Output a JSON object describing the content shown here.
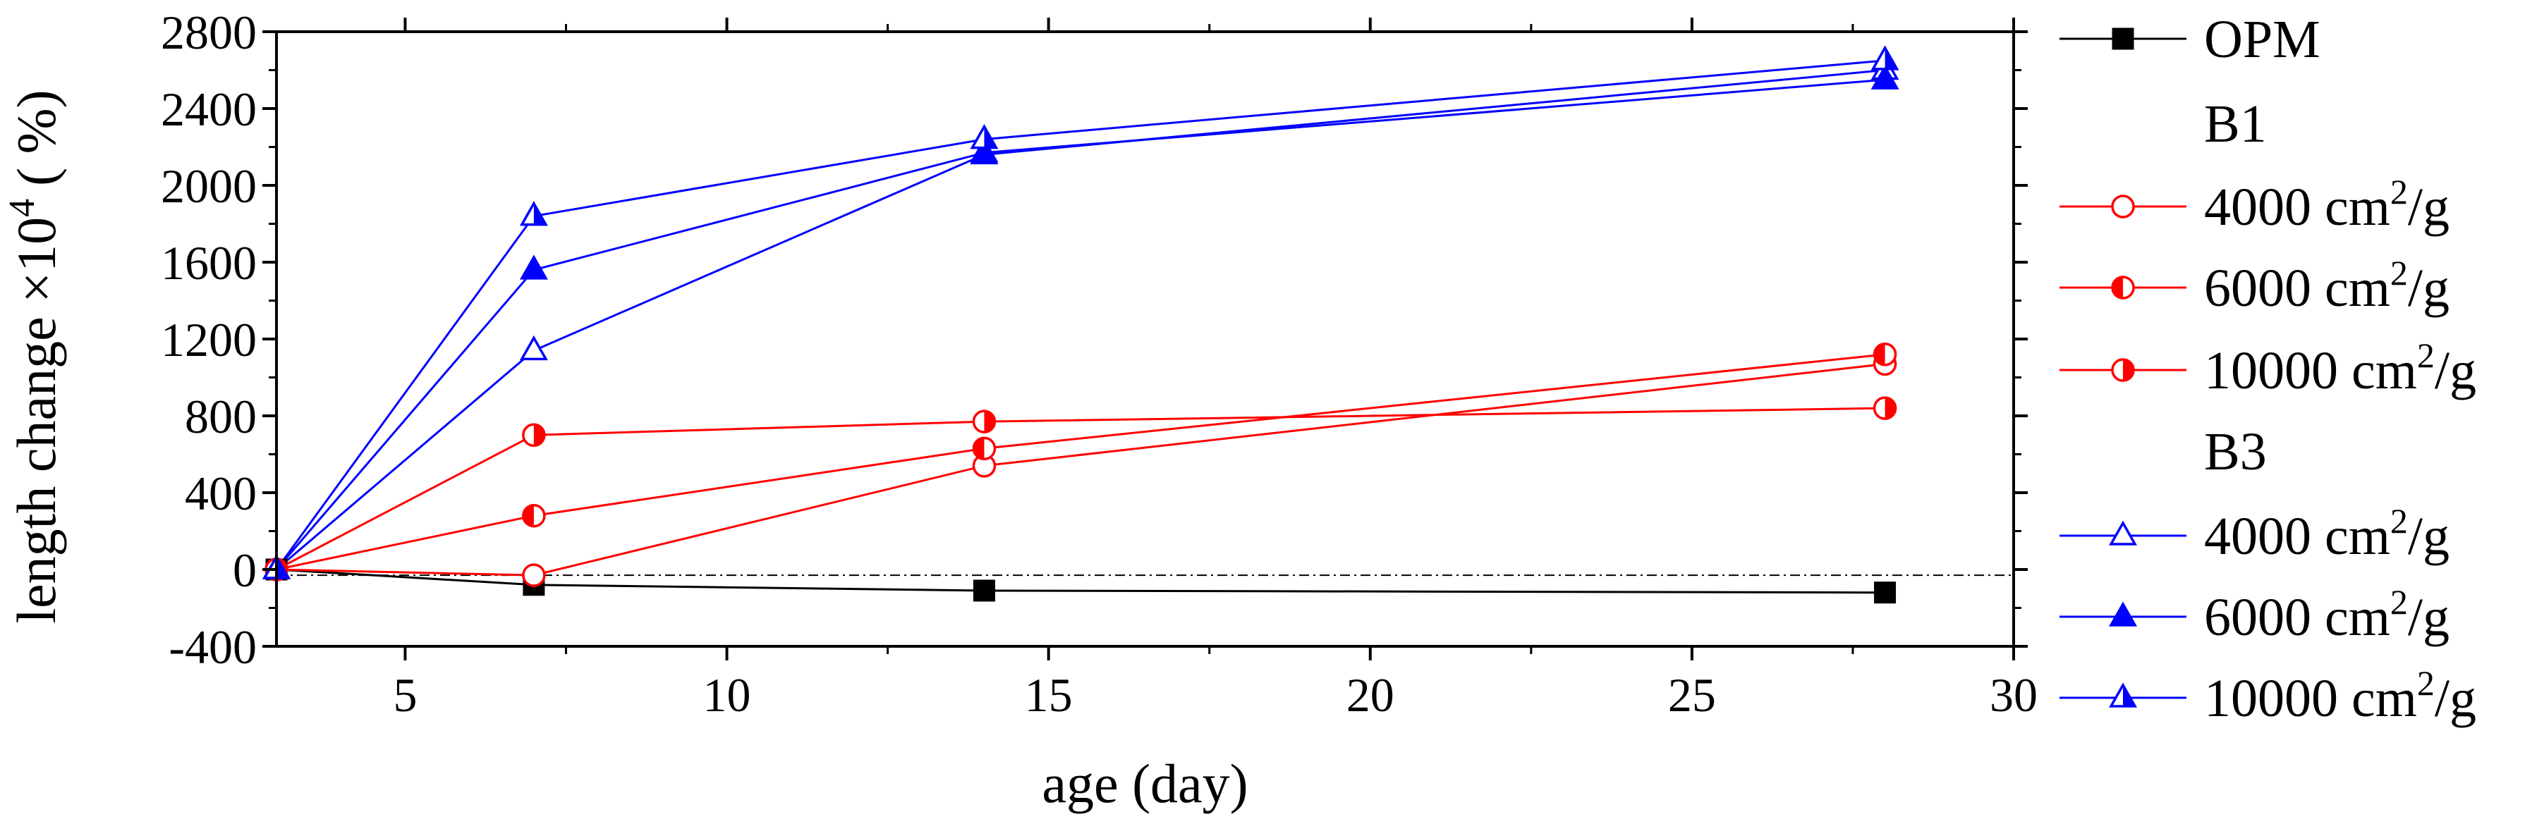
{
  "chart_data": {
    "type": "line",
    "xlabel": "age (day)",
    "ylabel": "length change ×10",
    "ylabel_superscript": "4",
    "ylabel_unit": "( %)",
    "xlim": [
      3,
      30
    ],
    "ylim": [
      -400,
      2800
    ],
    "x_ticks": [
      5,
      10,
      15,
      20,
      25,
      30
    ],
    "x_minor_ticks": [
      7.5,
      12.5,
      17.5,
      22.5,
      27.5
    ],
    "y_ticks": [
      -400,
      0,
      400,
      800,
      1200,
      1600,
      2000,
      2400,
      2800
    ],
    "y_minor_ticks": [
      -200,
      200,
      600,
      1000,
      1400,
      1800,
      2200,
      2600
    ],
    "reference_line_y": -30,
    "legend_position": "right",
    "legend_groups": [
      "B1",
      "B3"
    ],
    "series": [
      {
        "name": "OPM",
        "group": "",
        "color": "#000000",
        "marker": "filled-square",
        "x": [
          3,
          7,
          14,
          28
        ],
        "y": [
          0,
          -80,
          -110,
          -120
        ]
      },
      {
        "name": "4000 cm",
        "group": "B1",
        "unit_sup": "2",
        "unit_tail": "/g",
        "color": "#ff0000",
        "marker": "open-circle",
        "x": [
          3,
          7,
          14,
          28
        ],
        "y": [
          0,
          -30,
          540,
          1070
        ]
      },
      {
        "name": "6000 cm",
        "group": "B1",
        "unit_sup": "2",
        "unit_tail": "/g",
        "color": "#ff0000",
        "marker": "left-half-circle",
        "x": [
          3,
          7,
          14,
          28
        ],
        "y": [
          0,
          280,
          630,
          1120
        ]
      },
      {
        "name": "10000 cm",
        "group": "B1",
        "unit_sup": "2",
        "unit_tail": "/g",
        "color": "#ff0000",
        "marker": "right-half-circle",
        "x": [
          3,
          7,
          14,
          28
        ],
        "y": [
          0,
          700,
          770,
          840
        ]
      },
      {
        "name": "4000 cm",
        "group": "B3",
        "unit_sup": "2",
        "unit_tail": "/g",
        "color": "#0000ff",
        "marker": "open-triangle",
        "x": [
          3,
          7,
          14,
          28
        ],
        "y": [
          0,
          1140,
          2160,
          2600
        ]
      },
      {
        "name": "6000 cm",
        "group": "B3",
        "unit_sup": "2",
        "unit_tail": "/g",
        "color": "#0000ff",
        "marker": "filled-triangle",
        "x": [
          3,
          7,
          14,
          28
        ],
        "y": [
          0,
          1560,
          2170,
          2550
        ]
      },
      {
        "name": "10000 cm",
        "group": "B3",
        "unit_sup": "2",
        "unit_tail": "/g",
        "color": "#0000ff",
        "marker": "half-triangle",
        "x": [
          3,
          7,
          14,
          28
        ],
        "y": [
          0,
          1840,
          2240,
          2650
        ]
      }
    ]
  }
}
